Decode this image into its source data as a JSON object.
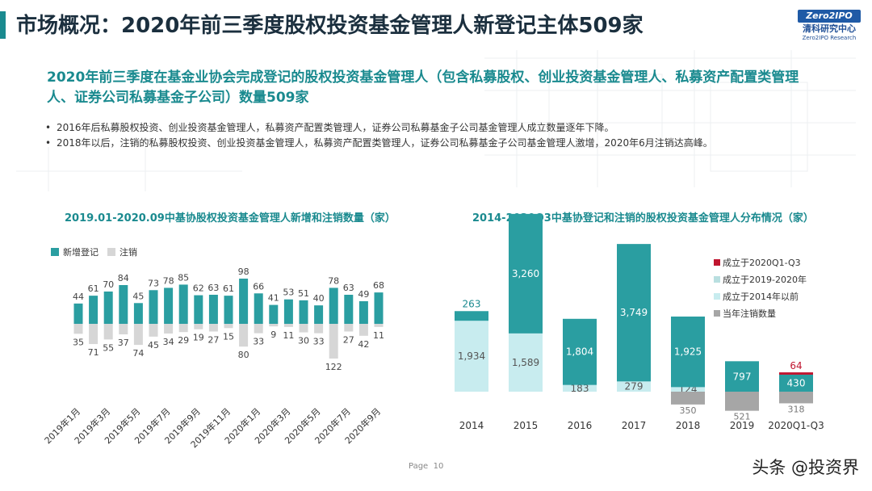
{
  "header": {
    "title": "市场概况：2020年前三季度股权投资基金管理人新登记主体509家",
    "logo": {
      "top": "Zero2IPO",
      "cn": "清科研究中心",
      "en": "Zero2IPO Research"
    }
  },
  "subtitle": "2020年前三季度在基金业协会完成登记的股权投资基金管理人（包含私募股权、创业投资基金管理人、私募资产配置类管理人、证券公司私募基金子公司）数量509家",
  "bullets": [
    "2016年后私募股权投资、创业投资基金管理人，私募资产配置类管理人，证券公司私募基金子公司基金管理人成立数量逐年下降。",
    "2018年以后，注销的私募股权投资、创业投资基金管理人，私募资产配置类管理人，证券公司私募基金子公司基金管理人激增，2020年6月注销达高峰。"
  ],
  "colors": {
    "teal": "#2a9ea1",
    "gray": "#d6d6d6",
    "lightTeal": "#c8ecef",
    "red": "#c0152f",
    "darkGray": "#a6a6a6",
    "accent": "#1a8a8f"
  },
  "footer": {
    "page_label": "Page",
    "page_number": "10",
    "watermark": "头条 @投资界"
  },
  "chart_data": [
    {
      "type": "bar",
      "title": "2019.01-2020.09中基协股权投资基金管理人新增和注销数量（家）",
      "legend": [
        "新增登记",
        "注销"
      ],
      "legend_position": "top-left",
      "categories": [
        "2019-01",
        "2019-02",
        "2019-03",
        "2019-04",
        "2019-05",
        "2019-06",
        "2019-07",
        "2019-08",
        "2019-09",
        "2019-10",
        "2019-11",
        "2019-12",
        "2020-01",
        "2020-02",
        "2020-03",
        "2020-04",
        "2020-05",
        "2020-06",
        "2020-07",
        "2020-08",
        "2020-09"
      ],
      "tick_labels": [
        "2019年1月",
        "2019年3月",
        "2019年5月",
        "2019年7月",
        "2019年9月",
        "2019年11月",
        "2020年1月",
        "2020年3月",
        "2020年5月",
        "2020年7月",
        "2020年9月"
      ],
      "series": [
        {
          "name": "新增登记",
          "values": [
            44,
            61,
            70,
            84,
            45,
            73,
            78,
            85,
            62,
            63,
            61,
            98,
            66,
            41,
            53,
            51,
            40,
            78,
            63,
            49,
            68
          ]
        },
        {
          "name": "注销",
          "values": [
            35,
            71,
            55,
            37,
            74,
            45,
            34,
            29,
            19,
            27,
            15,
            80,
            33,
            9,
            11,
            30,
            33,
            122,
            27,
            42,
            11
          ]
        }
      ]
    },
    {
      "type": "bar",
      "stacked": true,
      "title": "2014-2020Q3中基协登记和注销的股权投资基金管理人分布情况（家）",
      "legend_position": "right",
      "categories": [
        "2014",
        "2015",
        "2016",
        "2017",
        "2018",
        "2019",
        "2020Q1-Q3"
      ],
      "series": [
        {
          "name": "成立于2020Q1-Q3",
          "values": [
            null,
            null,
            null,
            null,
            null,
            null,
            64
          ]
        },
        {
          "name": "成立于2019-2020年",
          "values": [
            null,
            null,
            null,
            null,
            null,
            797,
            430
          ]
        },
        {
          "name": "成立于2014年以前",
          "values": [
            263,
            3260,
            1804,
            3749,
            1925,
            27,
            15
          ]
        },
        {
          "name": "成立于2014年以前_light",
          "values": [
            1934,
            1589,
            183,
            279,
            124,
            null,
            null
          ]
        },
        {
          "name": "当年注销数量",
          "values": [
            null,
            null,
            null,
            null,
            350,
            521,
            318
          ]
        }
      ]
    }
  ]
}
